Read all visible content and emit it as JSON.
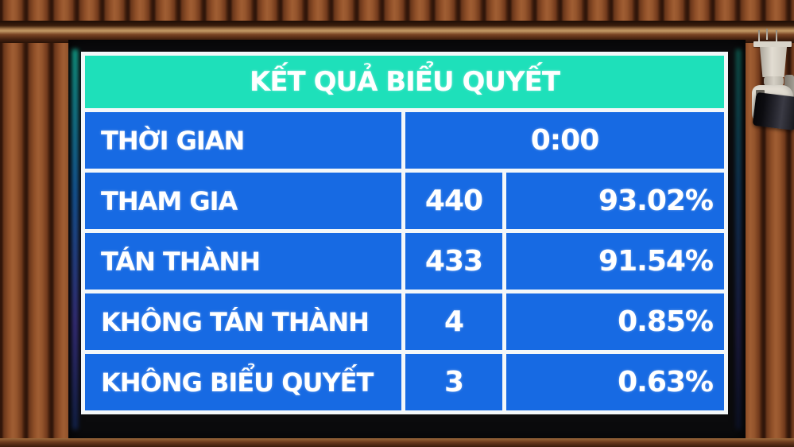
{
  "board": {
    "title": "KẾT QUẢ BIỂU QUYẾT",
    "rows": [
      {
        "label": "THỜI GIAN",
        "value": "0:00",
        "percent": null
      },
      {
        "label": "THAM GIA",
        "value": "440",
        "percent": "93.02%"
      },
      {
        "label": "TÁN THÀNH",
        "value": "433",
        "percent": "91.54%"
      },
      {
        "label": "KHÔNG TÁN THÀNH",
        "value": "4",
        "percent": "0.85%"
      },
      {
        "label": "KHÔNG BIỂU QUYẾT",
        "value": "3",
        "percent": "0.63%"
      }
    ],
    "colors": {
      "header_bg": "#1ee0ba",
      "row_bg": "#176ae3",
      "cell_border": "#f3f7f9",
      "text": "#ffffff",
      "screen_bg": "#0b0b0d",
      "wood": "#8a4a28"
    }
  }
}
